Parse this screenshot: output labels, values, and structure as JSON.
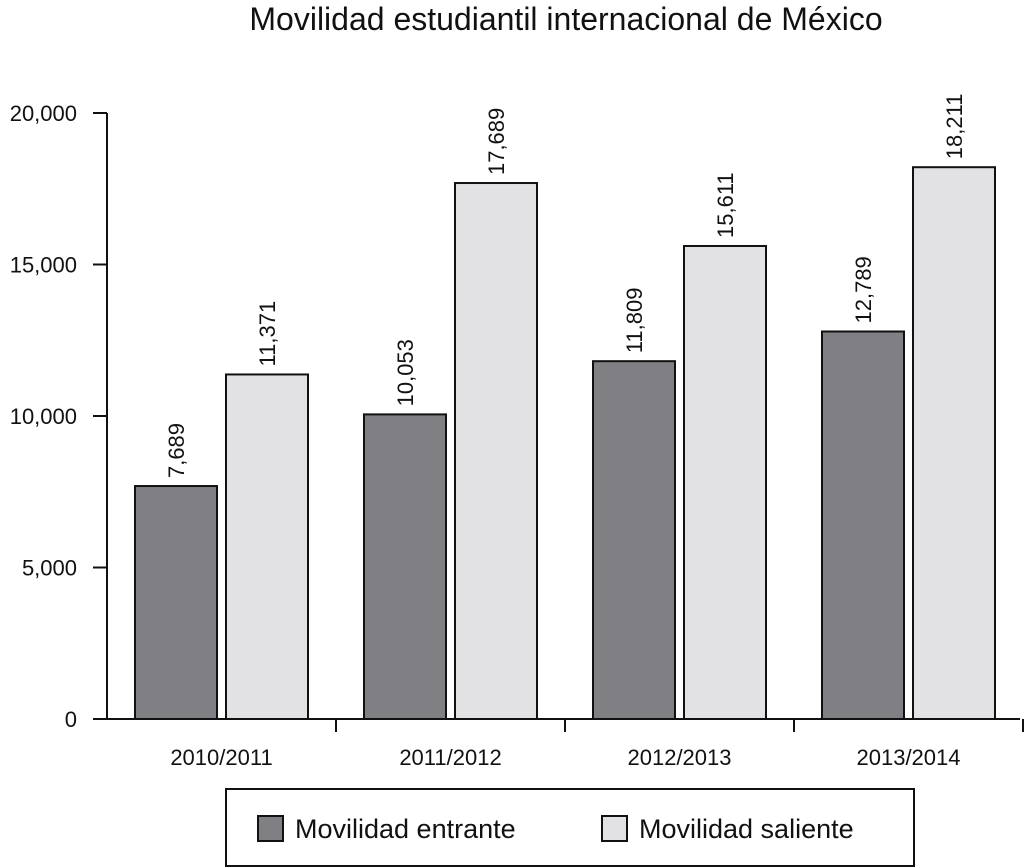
{
  "chart_data": {
    "type": "bar",
    "title": "Movilidad estudiantil internacional de México",
    "xlabel": "",
    "ylabel": "",
    "categories": [
      "2010/2011",
      "2011/2012",
      "2012/2013",
      "2013/2014"
    ],
    "series": [
      {
        "name": "Movilidad entrante",
        "color": "#808084",
        "values": [
          7689,
          10053,
          11809,
          12789
        ],
        "labels": [
          "7,689",
          "10,053",
          "11,809",
          "12,789"
        ]
      },
      {
        "name": "Movilidad saliente",
        "color": "#e2e2e4",
        "values": [
          11371,
          17689,
          15611,
          18211
        ],
        "labels": [
          "11,371",
          "17,689",
          "15,611",
          "18,211"
        ]
      }
    ],
    "ylim": [
      0,
      20000
    ],
    "yticks": [
      0,
      5000,
      10000,
      15000,
      20000
    ],
    "ytick_labels": [
      "0",
      "5,000",
      "10,000",
      "15,000",
      "20,000"
    ],
    "grid": false,
    "legend_position": "bottom"
  }
}
